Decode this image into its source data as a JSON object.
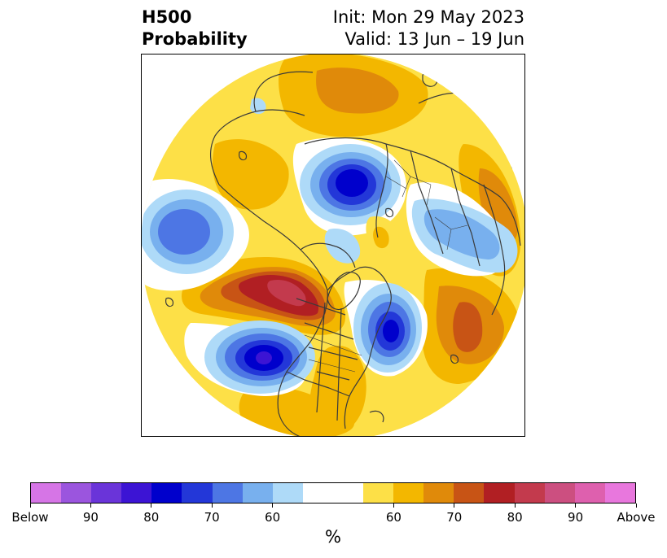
{
  "title": {
    "line1": "H500",
    "line2": "Probability",
    "init": "Init: Mon 29 May 2023",
    "valid": "Valid: 13 Jun – 19 Jun"
  },
  "colorbar": {
    "unit": "%",
    "labels": [
      "Below",
      "90",
      "80",
      "70",
      "60",
      "60",
      "70",
      "80",
      "90",
      "Above"
    ],
    "colors_below": [
      "#d675e6",
      "#9b55de",
      "#6a34d9",
      "#3c14d4",
      "#0000cc",
      "#2337d8",
      "#4d76e4",
      "#78b0ee",
      "#aedaf8"
    ],
    "color_neutral": "#ffffff",
    "colors_above": [
      "#fde047",
      "#f3b700",
      "#e08a0a",
      "#c85415",
      "#b11f23",
      "#c33a4d",
      "#cc4f80",
      "#de60ae",
      "#e877dd"
    ]
  },
  "map": {
    "projection": "north-polar-stereographic",
    "background": "#ffffff",
    "coast_color": "#3a3a3a"
  }
}
